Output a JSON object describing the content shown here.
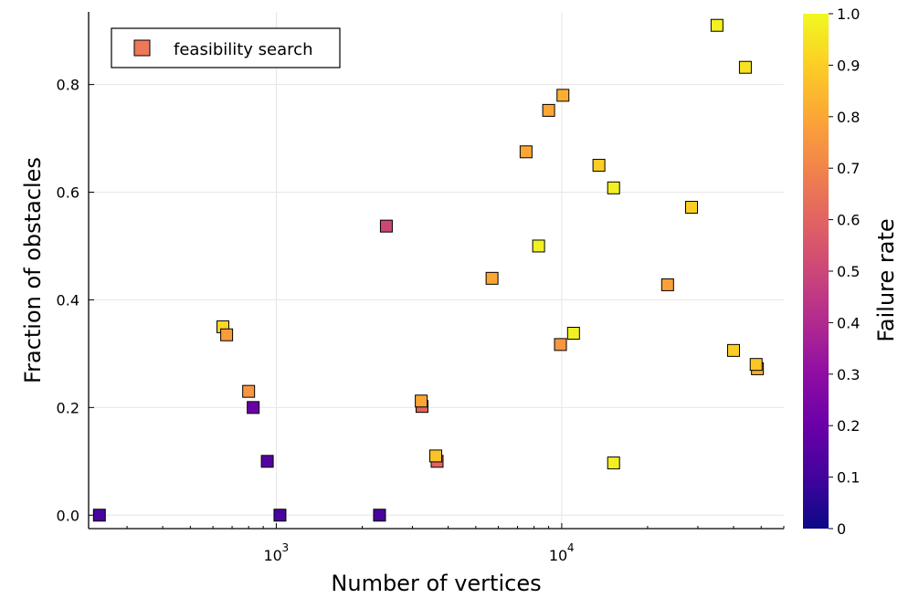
{
  "chart_data": {
    "type": "scatter",
    "xlabel": "Number of vertices",
    "ylabel": "Fraction of obstacles",
    "xscale": "log",
    "xlim": [
      220,
      60000
    ],
    "ylim": [
      -0.025,
      0.935
    ],
    "xticks": [
      {
        "value": 1000,
        "base": "10",
        "exp": "3"
      },
      {
        "value": 10000,
        "base": "10",
        "exp": "4"
      }
    ],
    "yticks": [
      "0.0",
      "0.2",
      "0.4",
      "0.6",
      "0.8"
    ],
    "grid": true,
    "legend": {
      "position": "top-left",
      "entries": [
        {
          "label": "feasibility search",
          "color": "#ee7959"
        }
      ]
    },
    "colorbar": {
      "label": "Failure rate",
      "colormap": "plasma",
      "range": [
        0,
        1
      ],
      "ticks": [
        "0",
        "0.1",
        "0.2",
        "0.3",
        "0.4",
        "0.5",
        "0.6",
        "0.7",
        "0.8",
        "0.9",
        "1.0"
      ]
    },
    "series": [
      {
        "name": "feasibility search",
        "marker": "square",
        "points": [
          {
            "x": 240,
            "y": 0.0,
            "c": 0.12
          },
          {
            "x": 1030,
            "y": 0.0,
            "c": 0.12
          },
          {
            "x": 2300,
            "y": 0.0,
            "c": 0.12
          },
          {
            "x": 930,
            "y": 0.1,
            "c": 0.15
          },
          {
            "x": 830,
            "y": 0.2,
            "c": 0.2
          },
          {
            "x": 800,
            "y": 0.23,
            "c": 0.75
          },
          {
            "x": 650,
            "y": 0.35,
            "c": 0.92
          },
          {
            "x": 670,
            "y": 0.335,
            "c": 0.77
          },
          {
            "x": 2430,
            "y": 0.537,
            "c": 0.5
          },
          {
            "x": 3240,
            "y": 0.202,
            "c": 0.6
          },
          {
            "x": 3220,
            "y": 0.212,
            "c": 0.8
          },
          {
            "x": 3660,
            "y": 0.1,
            "c": 0.6
          },
          {
            "x": 3620,
            "y": 0.11,
            "c": 0.87
          },
          {
            "x": 5700,
            "y": 0.44,
            "c": 0.8
          },
          {
            "x": 7500,
            "y": 0.675,
            "c": 0.8
          },
          {
            "x": 8300,
            "y": 0.5,
            "c": 0.98
          },
          {
            "x": 9000,
            "y": 0.752,
            "c": 0.8
          },
          {
            "x": 10100,
            "y": 0.78,
            "c": 0.82
          },
          {
            "x": 9900,
            "y": 0.317,
            "c": 0.75
          },
          {
            "x": 11000,
            "y": 0.338,
            "c": 0.98
          },
          {
            "x": 13500,
            "y": 0.65,
            "c": 0.9
          },
          {
            "x": 15200,
            "y": 0.608,
            "c": 0.98
          },
          {
            "x": 15200,
            "y": 0.097,
            "c": 0.98
          },
          {
            "x": 23500,
            "y": 0.428,
            "c": 0.78
          },
          {
            "x": 28500,
            "y": 0.572,
            "c": 0.9
          },
          {
            "x": 35000,
            "y": 0.91,
            "c": 0.98
          },
          {
            "x": 44000,
            "y": 0.832,
            "c": 0.95
          },
          {
            "x": 40000,
            "y": 0.306,
            "c": 0.9
          },
          {
            "x": 48500,
            "y": 0.272,
            "c": 0.82
          },
          {
            "x": 48000,
            "y": 0.28,
            "c": 0.88
          }
        ]
      }
    ]
  }
}
